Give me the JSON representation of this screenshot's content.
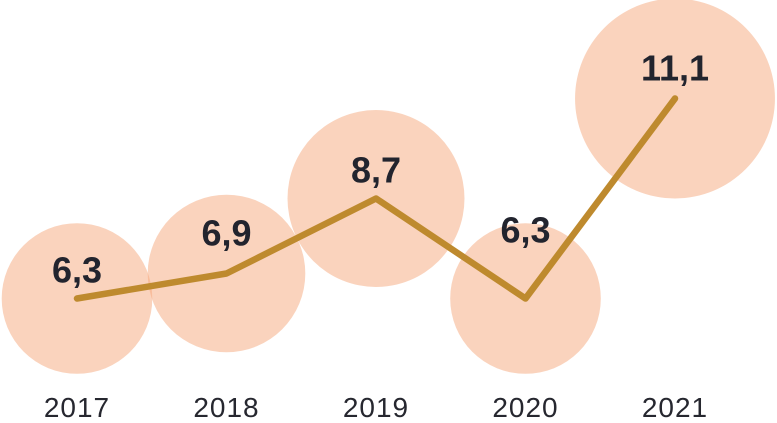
{
  "chart_data": {
    "type": "line",
    "marker": "bubble-area-scaled",
    "categories": [
      "2017",
      "2018",
      "2019",
      "2020",
      "2021"
    ],
    "values": [
      6.3,
      6.9,
      8.7,
      6.3,
      11.1
    ],
    "value_labels": [
      "6,3",
      "6,9",
      "8,7",
      "6,3",
      "11,1"
    ],
    "title": "",
    "xlabel": "",
    "ylabel": "",
    "grid": false,
    "legend": false,
    "number_format": "decimal-comma"
  },
  "colors": {
    "bubble_fill": "#F6A77C",
    "bubble_opacity": 0.5,
    "line": "#BE8A2E",
    "value_label": "#22242E",
    "year_label": "#26272F",
    "background": "#FFFFFF"
  }
}
